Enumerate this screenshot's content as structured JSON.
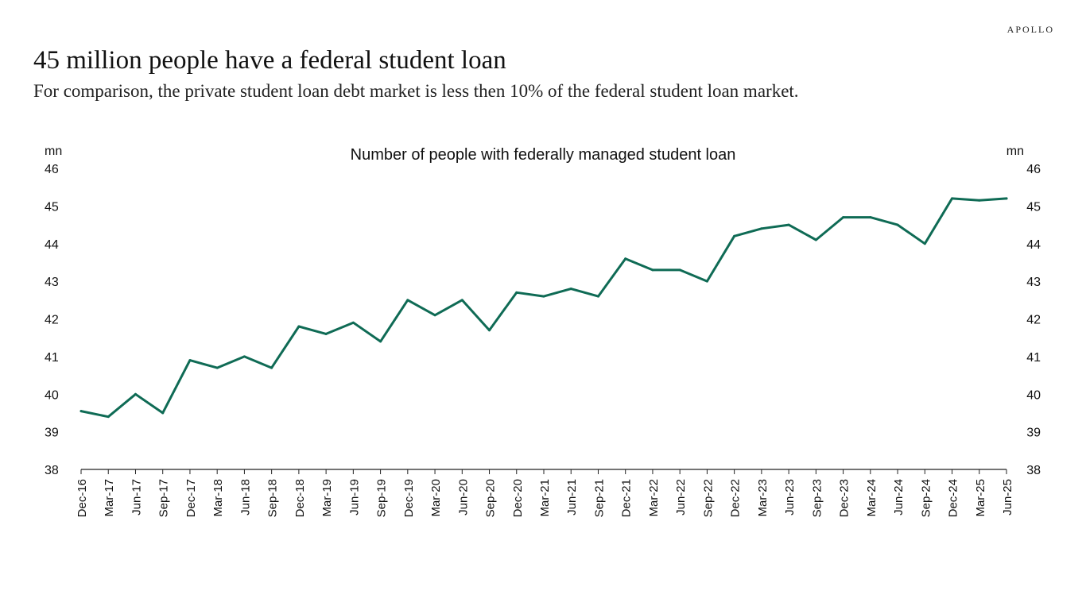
{
  "brand": "APOLLO",
  "title": "45 million people have a federal student loan",
  "subtitle": "For comparison, the private student loan debt market is less then 10% of  the federal student loan market.",
  "chart_data": {
    "type": "line",
    "title": "Number of people with federally managed student loan",
    "ylabel_left": "mn",
    "ylabel_right": "mn",
    "ylim": [
      38,
      46
    ],
    "yticks": [
      38,
      39,
      40,
      41,
      42,
      43,
      44,
      45,
      46
    ],
    "grid": false,
    "line_color": "#0f6b55",
    "categories": [
      "Dec-16",
      "Mar-17",
      "Jun-17",
      "Sep-17",
      "Dec-17",
      "Mar-18",
      "Jun-18",
      "Sep-18",
      "Dec-18",
      "Mar-19",
      "Jun-19",
      "Sep-19",
      "Dec-19",
      "Mar-20",
      "Jun-20",
      "Sep-20",
      "Dec-20",
      "Mar-21",
      "Jun-21",
      "Sep-21",
      "Dec-21",
      "Mar-22",
      "Jun-22",
      "Sep-22",
      "Dec-22",
      "Mar-23",
      "Jun-23",
      "Sep-23",
      "Dec-23",
      "Mar-24",
      "Jun-24",
      "Sep-24",
      "Dec-24",
      "Mar-25",
      "Jun-25"
    ],
    "series": [
      {
        "values": [
          39.55,
          39.4,
          40.0,
          39.5,
          40.9,
          40.7,
          41.0,
          40.7,
          41.8,
          41.6,
          41.9,
          41.4,
          42.5,
          42.1,
          42.5,
          41.7,
          42.7,
          42.6,
          42.8,
          42.6,
          43.6,
          43.3,
          43.3,
          43.0,
          44.2,
          44.4,
          44.5,
          44.1,
          44.7,
          44.7,
          44.5,
          44.0,
          45.2,
          45.15,
          45.2
        ]
      }
    ]
  }
}
